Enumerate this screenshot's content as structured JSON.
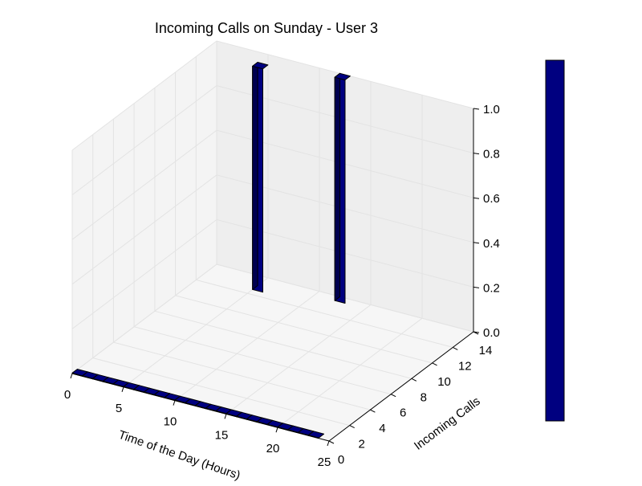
{
  "chart_data": {
    "type": "bar3d",
    "title": "Incoming Calls on Sunday - User 3",
    "xlabel": "Time of the Day (Hours)",
    "ylabel": "Incoming Calls",
    "zlabel": "",
    "xlim": [
      0,
      25
    ],
    "ylim": [
      0,
      14
    ],
    "zlim": [
      0,
      1
    ],
    "xticks": [
      "0",
      "5",
      "10",
      "15",
      "20",
      "25"
    ],
    "yticks": [
      "0",
      "2",
      "4",
      "6",
      "8",
      "10",
      "12",
      "14"
    ],
    "zticks": [
      "0.0",
      "0.2",
      "0.4",
      "0.6",
      "0.8",
      "1.0"
    ],
    "grid": true,
    "colorbar": true,
    "baseline_hours": [
      1,
      2,
      3,
      4,
      5,
      6,
      7,
      8,
      9,
      10,
      11,
      12,
      13,
      14,
      15,
      16,
      17,
      18,
      19,
      20,
      21,
      22,
      23,
      24
    ],
    "bars": [
      {
        "x": 5.5,
        "y": 13,
        "z": 1
      },
      {
        "x": 12.5,
        "y": 14,
        "z": 1
      }
    ],
    "colors": {
      "bar": "#000080",
      "bar_dark": "#000050",
      "pane": "#f2f2f2",
      "grid": "#e3e3e3"
    }
  }
}
